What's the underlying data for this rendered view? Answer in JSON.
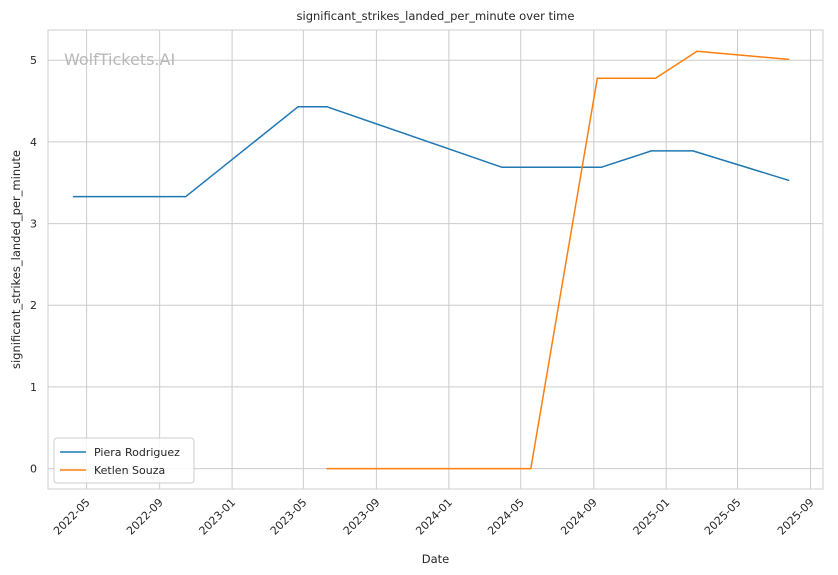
{
  "chart_data": {
    "type": "line",
    "title": "significant_strikes_landed_per_minute over time",
    "xlabel": "Date",
    "ylabel": "significant_strikes_landed_per_minute",
    "watermark": "WolfTickets.AI",
    "x_ticks": [
      "2022-05",
      "2022-09",
      "2023-01",
      "2023-05",
      "2023-09",
      "2024-01",
      "2024-05",
      "2024-09",
      "2025-01",
      "2025-05",
      "2025-09"
    ],
    "y_ticks": [
      0,
      1,
      2,
      3,
      4,
      5
    ],
    "xlim": [
      "2022-02-25",
      "2025-09-22"
    ],
    "ylim": [
      -0.25,
      5.37
    ],
    "grid": true,
    "legend_position": "lower-left",
    "series": [
      {
        "name": "Piera Rodriguez",
        "color": "#1f77b4",
        "points": [
          {
            "x": "2022-04-09",
            "y": 3.33
          },
          {
            "x": "2022-10-15",
            "y": 3.33
          },
          {
            "x": "2023-04-22",
            "y": 4.43
          },
          {
            "x": "2023-06-10",
            "y": 4.43
          },
          {
            "x": "2024-03-30",
            "y": 3.69
          },
          {
            "x": "2024-09-14",
            "y": 3.69
          },
          {
            "x": "2024-12-07",
            "y": 3.89
          },
          {
            "x": "2025-02-15",
            "y": 3.89
          },
          {
            "x": "2025-07-26",
            "y": 3.53
          }
        ]
      },
      {
        "name": "Ketlen Souza",
        "color": "#ff7f0e",
        "points": [
          {
            "x": "2023-06-10",
            "y": 0.0
          },
          {
            "x": "2024-05-18",
            "y": 0.0
          },
          {
            "x": "2024-09-07",
            "y": 4.78
          },
          {
            "x": "2024-12-14",
            "y": 4.78
          },
          {
            "x": "2025-02-22",
            "y": 5.11
          },
          {
            "x": "2025-07-26",
            "y": 5.01
          }
        ]
      }
    ]
  }
}
